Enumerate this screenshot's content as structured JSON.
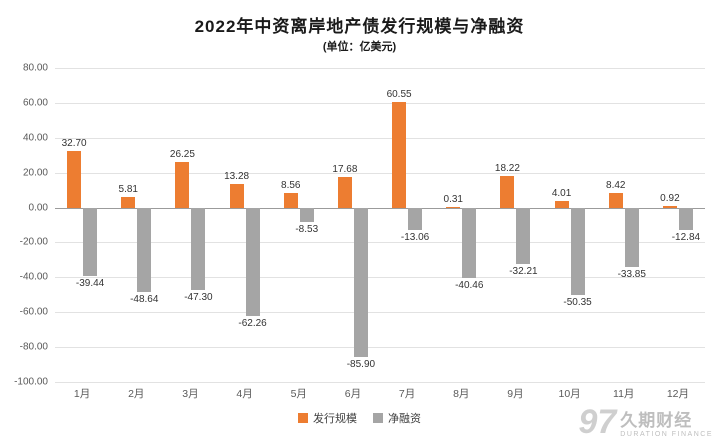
{
  "title": "2022年中资离岸地产债发行规模与净融资",
  "subtitle": "(单位：亿美元)",
  "colors": {
    "issuance": "#ED7D31",
    "net_financing": "#A5A5A5",
    "gridline": "#E2E2E2",
    "zero_line": "#9B9B9B"
  },
  "legend": {
    "items": [
      {
        "label": "发行规模",
        "color": "#ED7D31"
      },
      {
        "label": "净融资",
        "color": "#A5A5A5"
      }
    ]
  },
  "watermark": {
    "brand": "久期财经",
    "sub": "DURATION FINANCE",
    "logo_text": "97"
  },
  "chart_data": {
    "type": "bar",
    "title": "2022年中资离岸地产债发行规模与净融资",
    "subtitle": "(单位：亿美元)",
    "categories": [
      "1月",
      "2月",
      "3月",
      "4月",
      "5月",
      "6月",
      "7月",
      "8月",
      "9月",
      "10月",
      "11月",
      "12月"
    ],
    "series": [
      {
        "name": "发行规模",
        "key": "issuance",
        "color": "#ED7D31",
        "values": [
          32.7,
          5.81,
          26.25,
          13.28,
          8.56,
          17.68,
          60.55,
          0.31,
          18.22,
          4.01,
          8.42,
          0.92
        ]
      },
      {
        "name": "净融资",
        "key": "net-financing",
        "color": "#A5A5A5",
        "values": [
          -39.44,
          -48.64,
          -47.3,
          -62.26,
          -8.53,
          -85.9,
          -13.06,
          -40.46,
          -32.21,
          -50.35,
          -33.85,
          -12.84
        ]
      }
    ],
    "xlabel": "",
    "ylabel": "",
    "ylim": [
      -100,
      80
    ],
    "ytick_step": 20,
    "grid": true,
    "legend_position": "bottom",
    "data_labels": true
  }
}
